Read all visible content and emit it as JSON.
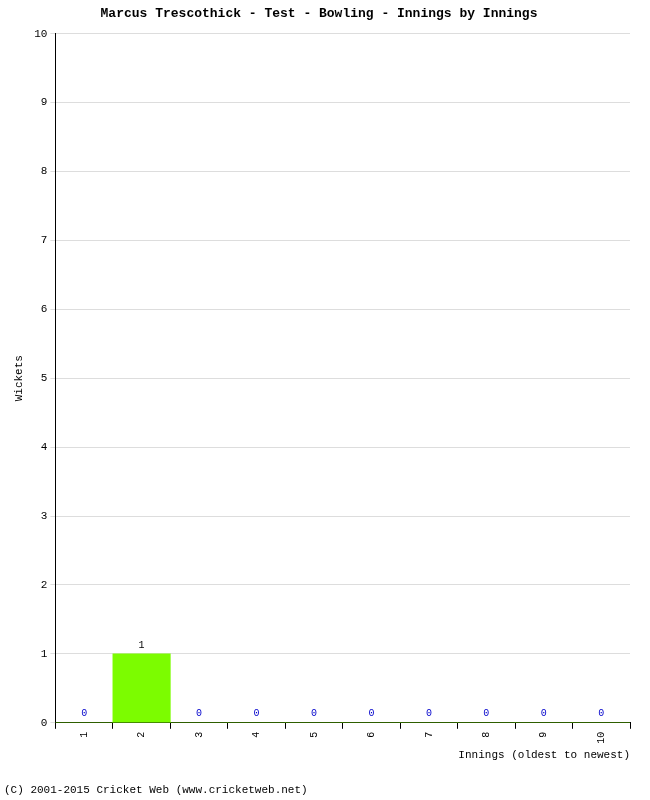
{
  "chart_data": {
    "type": "bar",
    "title": "Marcus Trescothick - Test - Bowling - Innings by Innings",
    "x_label": "Innings (oldest to newest)",
    "y_label": "Wickets",
    "categories": [
      "1",
      "2",
      "3",
      "4",
      "5",
      "6",
      "7",
      "8",
      "9",
      "10"
    ],
    "values": [
      0,
      1,
      0,
      0,
      0,
      0,
      0,
      0,
      0,
      0
    ],
    "color": "#7cfc00",
    "ylim": [
      0,
      10
    ],
    "yticks": [
      0,
      1,
      2,
      3,
      4,
      5,
      6,
      7,
      8,
      9,
      10
    ],
    "grid": true,
    "data_labels": true,
    "annotations": [
      "(C) 2001-2015 Cricket Web (www.cricketweb.net)"
    ]
  }
}
